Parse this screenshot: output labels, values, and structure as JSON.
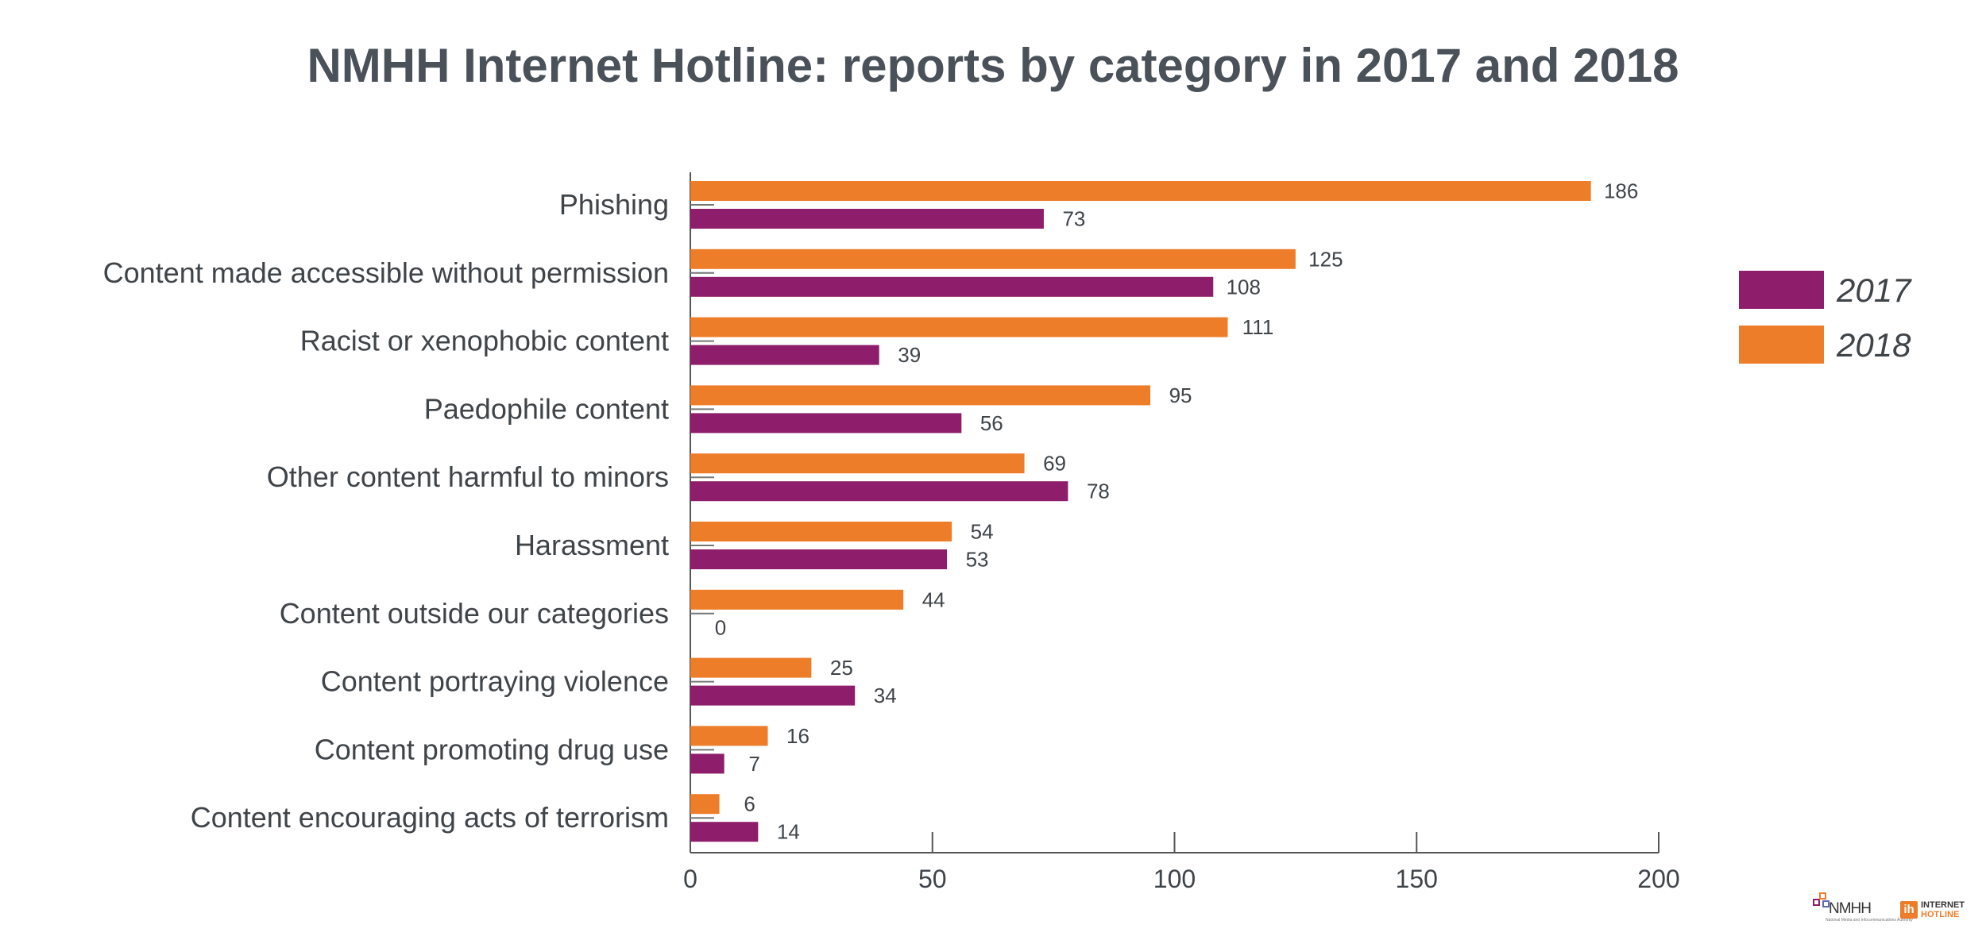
{
  "chart_data": {
    "type": "bar",
    "orientation": "horizontal",
    "title": "NMHH Internet Hotline: reports by category in 2017 and 2018",
    "categories": [
      "Phishing",
      "Content made accessible without permission",
      "Racist or xenophobic content",
      "Paedophile content",
      "Other content harmful to minors",
      "Harassment",
      "Content outside our categories",
      "Content portraying violence",
      "Content promoting drug use",
      "Content encouraging acts of terrorism"
    ],
    "series": [
      {
        "name": "2018",
        "color": "#ee7d2a",
        "values": [
          186,
          125,
          111,
          95,
          69,
          54,
          44,
          25,
          16,
          6
        ]
      },
      {
        "name": "2017",
        "color": "#8e1d6b",
        "values": [
          73,
          108,
          39,
          56,
          78,
          53,
          0,
          34,
          7,
          14
        ]
      }
    ],
    "xlim": [
      0,
      200
    ],
    "xticks": [
      "0",
      "50",
      "100",
      "150",
      "200"
    ],
    "legend": {
      "position": "right",
      "entries": [
        "2017",
        "2018"
      ]
    },
    "grid": false,
    "data_labels": true
  },
  "logos": {
    "nmhh": {
      "text": "NMHH",
      "subtitle": "National Media and Infocommunications Authority"
    },
    "internet_hotline": {
      "line1": "INTERNET",
      "line2": "HOTLINE",
      "mark": "ih"
    }
  }
}
